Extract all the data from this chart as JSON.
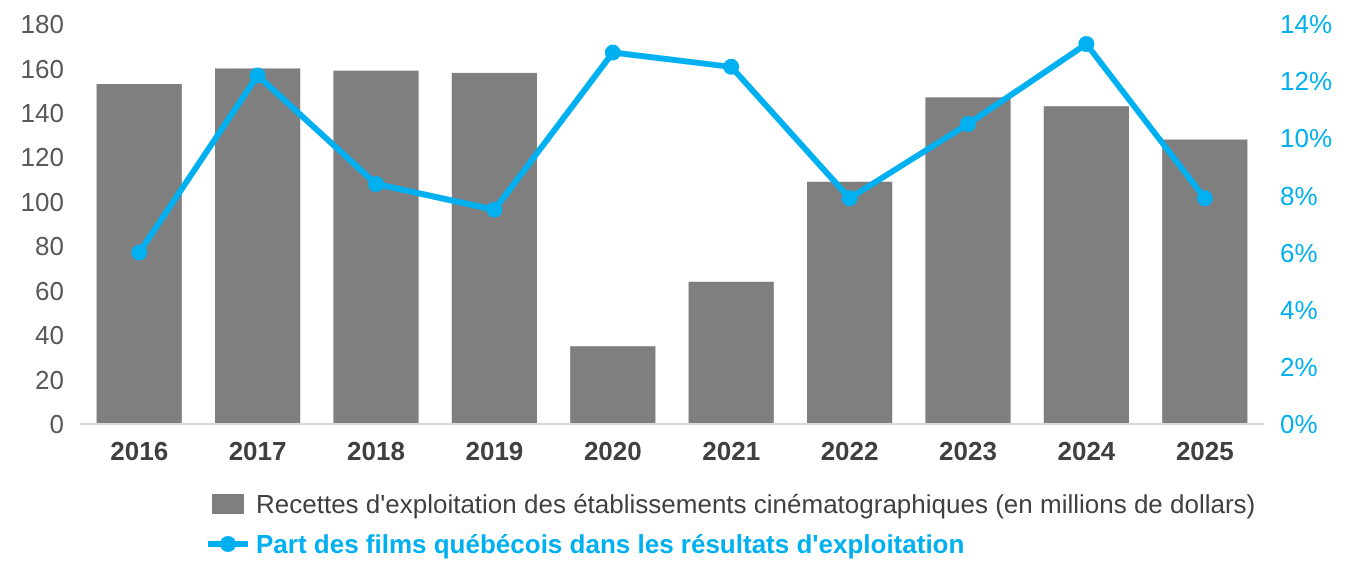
{
  "chart_data": {
    "type": "bar",
    "categories": [
      "2016",
      "2017",
      "2018",
      "2019",
      "2020",
      "2021",
      "2022",
      "2023",
      "2024",
      "2025"
    ],
    "series": [
      {
        "name": "Recettes d'exploitation des établissements cinématographiques (en millions de dollars)",
        "color": "#7f7f7f",
        "values": [
          153,
          160,
          159,
          158,
          35,
          64,
          109,
          147,
          143,
          128
        ]
      },
      {
        "name": "Part des films québécois dans les résultats d'exploitation",
        "type": "line",
        "axis": "y2",
        "color": "#00b0f0",
        "marker": "circle",
        "values": [
          6.0,
          12.2,
          8.4,
          7.5,
          13.0,
          12.5,
          7.9,
          10.5,
          13.3,
          7.9
        ]
      }
    ],
    "ylim": [
      0,
      180
    ],
    "yticks": [
      0,
      20,
      40,
      60,
      80,
      100,
      120,
      140,
      160,
      180
    ],
    "y2lim": [
      0,
      14
    ],
    "y2ticks": [
      {
        "value": 0,
        "label": "0%"
      },
      {
        "value": 2,
        "label": "2%"
      },
      {
        "value": 4,
        "label": "4%"
      },
      {
        "value": 6,
        "label": "6%"
      },
      {
        "value": 8,
        "label": "8%"
      },
      {
        "value": 10,
        "label": "10%"
      },
      {
        "value": 12,
        "label": "12%"
      },
      {
        "value": 14,
        "label": "14%"
      }
    ],
    "legend": "bottom"
  }
}
